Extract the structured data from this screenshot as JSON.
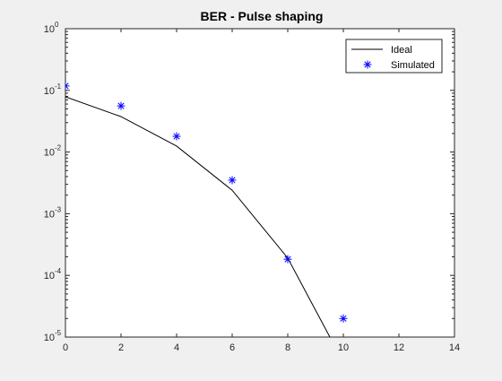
{
  "chart_data": {
    "type": "line",
    "title": "BER - Pulse shaping",
    "xlabel": "",
    "ylabel": "",
    "xlim": [
      0,
      14
    ],
    "ylim": [
      1e-05,
      1
    ],
    "yscale": "log",
    "grid": false,
    "legend_position": "top-right",
    "x_ticks": [
      "0",
      "2",
      "4",
      "6",
      "8",
      "10",
      "12",
      "14"
    ],
    "y_ticks": [
      {
        "base": "10",
        "exp": "0"
      },
      {
        "base": "10",
        "exp": "-1"
      },
      {
        "base": "10",
        "exp": "-2"
      },
      {
        "base": "10",
        "exp": "-3"
      },
      {
        "base": "10",
        "exp": "-4"
      },
      {
        "base": "10",
        "exp": "-5"
      }
    ],
    "series": [
      {
        "name": "Ideal",
        "style": "line",
        "color": "#000000",
        "x": [
          0,
          2,
          4,
          6,
          8,
          10
        ],
        "y": [
          0.0786,
          0.0375,
          0.0125,
          0.0024,
          0.000191,
          3.9e-06
        ]
      },
      {
        "name": "Simulated",
        "style": "markers",
        "marker": "asterisk",
        "color": "#0000ff",
        "x": [
          0,
          2,
          4,
          6,
          8,
          10
        ],
        "y": [
          0.118,
          0.056,
          0.018,
          0.0035,
          0.000183,
          2e-05
        ]
      }
    ]
  }
}
